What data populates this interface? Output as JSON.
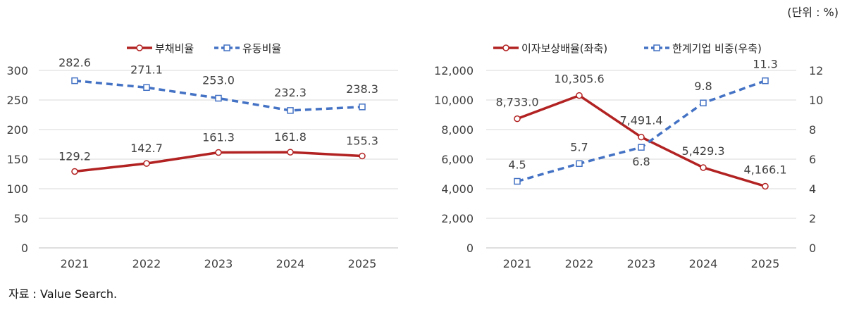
{
  "unit_note": "(단위 : %)",
  "source_note": "자료 : Value Search.",
  "chart_data": [
    {
      "type": "line",
      "x": [
        "2021",
        "2022",
        "2023",
        "2024",
        "2025"
      ],
      "ylim": [
        0,
        300
      ],
      "yticks": [
        "0",
        "50",
        "100",
        "150",
        "200",
        "250",
        "300"
      ],
      "grid": true,
      "legend_position": "top-center",
      "series": [
        {
          "name": "부채비율",
          "values": [
            129.2,
            142.7,
            161.3,
            161.8,
            155.3
          ],
          "labels": [
            "129.2",
            "142.7",
            "161.3",
            "161.8",
            "155.3"
          ],
          "color": "#B22222",
          "style": "solid",
          "marker": "circle"
        },
        {
          "name": "유동비율",
          "values": [
            282.6,
            271.1,
            253.0,
            232.3,
            238.3
          ],
          "labels": [
            "282.6",
            "271.1",
            "253.0",
            "232.3",
            "238.3"
          ],
          "color": "#4472C4",
          "style": "dashed",
          "marker": "square"
        }
      ]
    },
    {
      "type": "line",
      "x": [
        "2021",
        "2022",
        "2023",
        "2024",
        "2025"
      ],
      "ylim": [
        0,
        12000
      ],
      "yticks": [
        "0",
        "2,000",
        "4,000",
        "6,000",
        "8,000",
        "10,000",
        "12,000"
      ],
      "y2lim": [
        0,
        12
      ],
      "y2ticks": [
        "0",
        "2",
        "4",
        "6",
        "8",
        "10",
        "12"
      ],
      "grid": true,
      "legend_position": "top-center",
      "series": [
        {
          "name": "이자보상배율(좌축)",
          "axis": "left",
          "values": [
            8733.0,
            10305.6,
            7491.4,
            5429.3,
            4166.1
          ],
          "labels": [
            "8,733.0",
            "10,305.6",
            "7,491.4",
            "5,429.3",
            "4,166.1"
          ],
          "color": "#B22222",
          "style": "solid",
          "marker": "circle"
        },
        {
          "name": "한계기업 비중(우축)",
          "axis": "right",
          "values": [
            4.5,
            5.7,
            6.8,
            9.8,
            11.3
          ],
          "labels": [
            "4.5",
            "5.7",
            "6.8",
            "9.8",
            "11.3"
          ],
          "color": "#4472C4",
          "style": "dashed",
          "marker": "square"
        }
      ]
    }
  ]
}
